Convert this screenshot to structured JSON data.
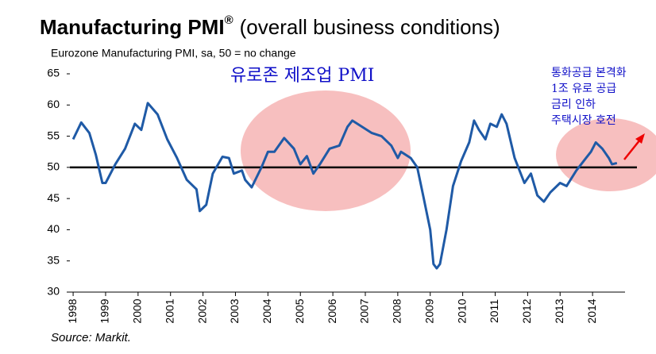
{
  "chart_data": {
    "type": "line",
    "title": "Manufacturing PMI",
    "title_mark": "®",
    "title_suffix": "(overall business conditions)",
    "subtitle": "Eurozone Manufacturing PMI, sa, 50 = no change",
    "source": "Source: Markit.",
    "annotations": [
      "유로존 제조업 PMI",
      "통화공급 본격화",
      "1조 유로 공급",
      "금리 인하",
      "주택시장 호전"
    ],
    "color": "#1f5aa6",
    "reference_line": 50,
    "x": [
      1998.0,
      1998.25,
      1998.5,
      1998.7,
      1998.9,
      1999.0,
      1999.3,
      1999.6,
      1999.9,
      2000.1,
      2000.3,
      2000.6,
      2000.9,
      2001.2,
      2001.5,
      2001.8,
      2001.9,
      2002.1,
      2002.3,
      2002.6,
      2002.8,
      2002.95,
      2003.2,
      2003.3,
      2003.5,
      2003.8,
      2004.0,
      2004.2,
      2004.5,
      2004.8,
      2005.0,
      2005.2,
      2005.4,
      2005.6,
      2005.9,
      2006.2,
      2006.45,
      2006.6,
      2006.9,
      2007.2,
      2007.5,
      2007.8,
      2008.0,
      2008.1,
      2008.4,
      2008.6,
      2008.8,
      2009.0,
      2009.1,
      2009.2,
      2009.3,
      2009.5,
      2009.7,
      2009.95,
      2010.2,
      2010.35,
      2010.5,
      2010.7,
      2010.85,
      2011.05,
      2011.2,
      2011.35,
      2011.6,
      2011.9,
      2012.1,
      2012.3,
      2012.5,
      2012.7,
      2013.0,
      2013.2,
      2013.5,
      2013.8,
      2013.95,
      2014.1,
      2014.3,
      2014.5,
      2014.6,
      2014.75
    ],
    "values": [
      54.5,
      57.2,
      55.5,
      52,
      47.5,
      47.5,
      50.5,
      53,
      57,
      56,
      60.3,
      58.5,
      54.5,
      51.5,
      48,
      46.5,
      43,
      44,
      49,
      51.7,
      51.5,
      49,
      49.5,
      48,
      46.8,
      50,
      52.5,
      52.5,
      54.7,
      53,
      50.5,
      51.8,
      49,
      50.5,
      53,
      53.5,
      56.5,
      57.5,
      56.5,
      55.5,
      55,
      53.5,
      51.5,
      52.5,
      51.5,
      50,
      45,
      40,
      34.5,
      33.8,
      34.5,
      40,
      47,
      51,
      54,
      57.5,
      56,
      54.5,
      57,
      56.5,
      58.5,
      57,
      51.5,
      47.5,
      49,
      45.5,
      44.5,
      46,
      47.5,
      47,
      49.5,
      51.5,
      52.5,
      54,
      53,
      51.5,
      50.5,
      50.7
    ],
    "xlim": [
      1997.9,
      2015
    ],
    "ylim": [
      30,
      65
    ],
    "xticks": [
      1998,
      1999,
      2000,
      2001,
      2002,
      2003,
      2004,
      2005,
      2006,
      2007,
      2008,
      2009,
      2010,
      2011,
      2012,
      2013,
      2014
    ],
    "yticks": [
      30,
      35,
      40,
      45,
      50,
      55,
      60,
      65
    ]
  }
}
